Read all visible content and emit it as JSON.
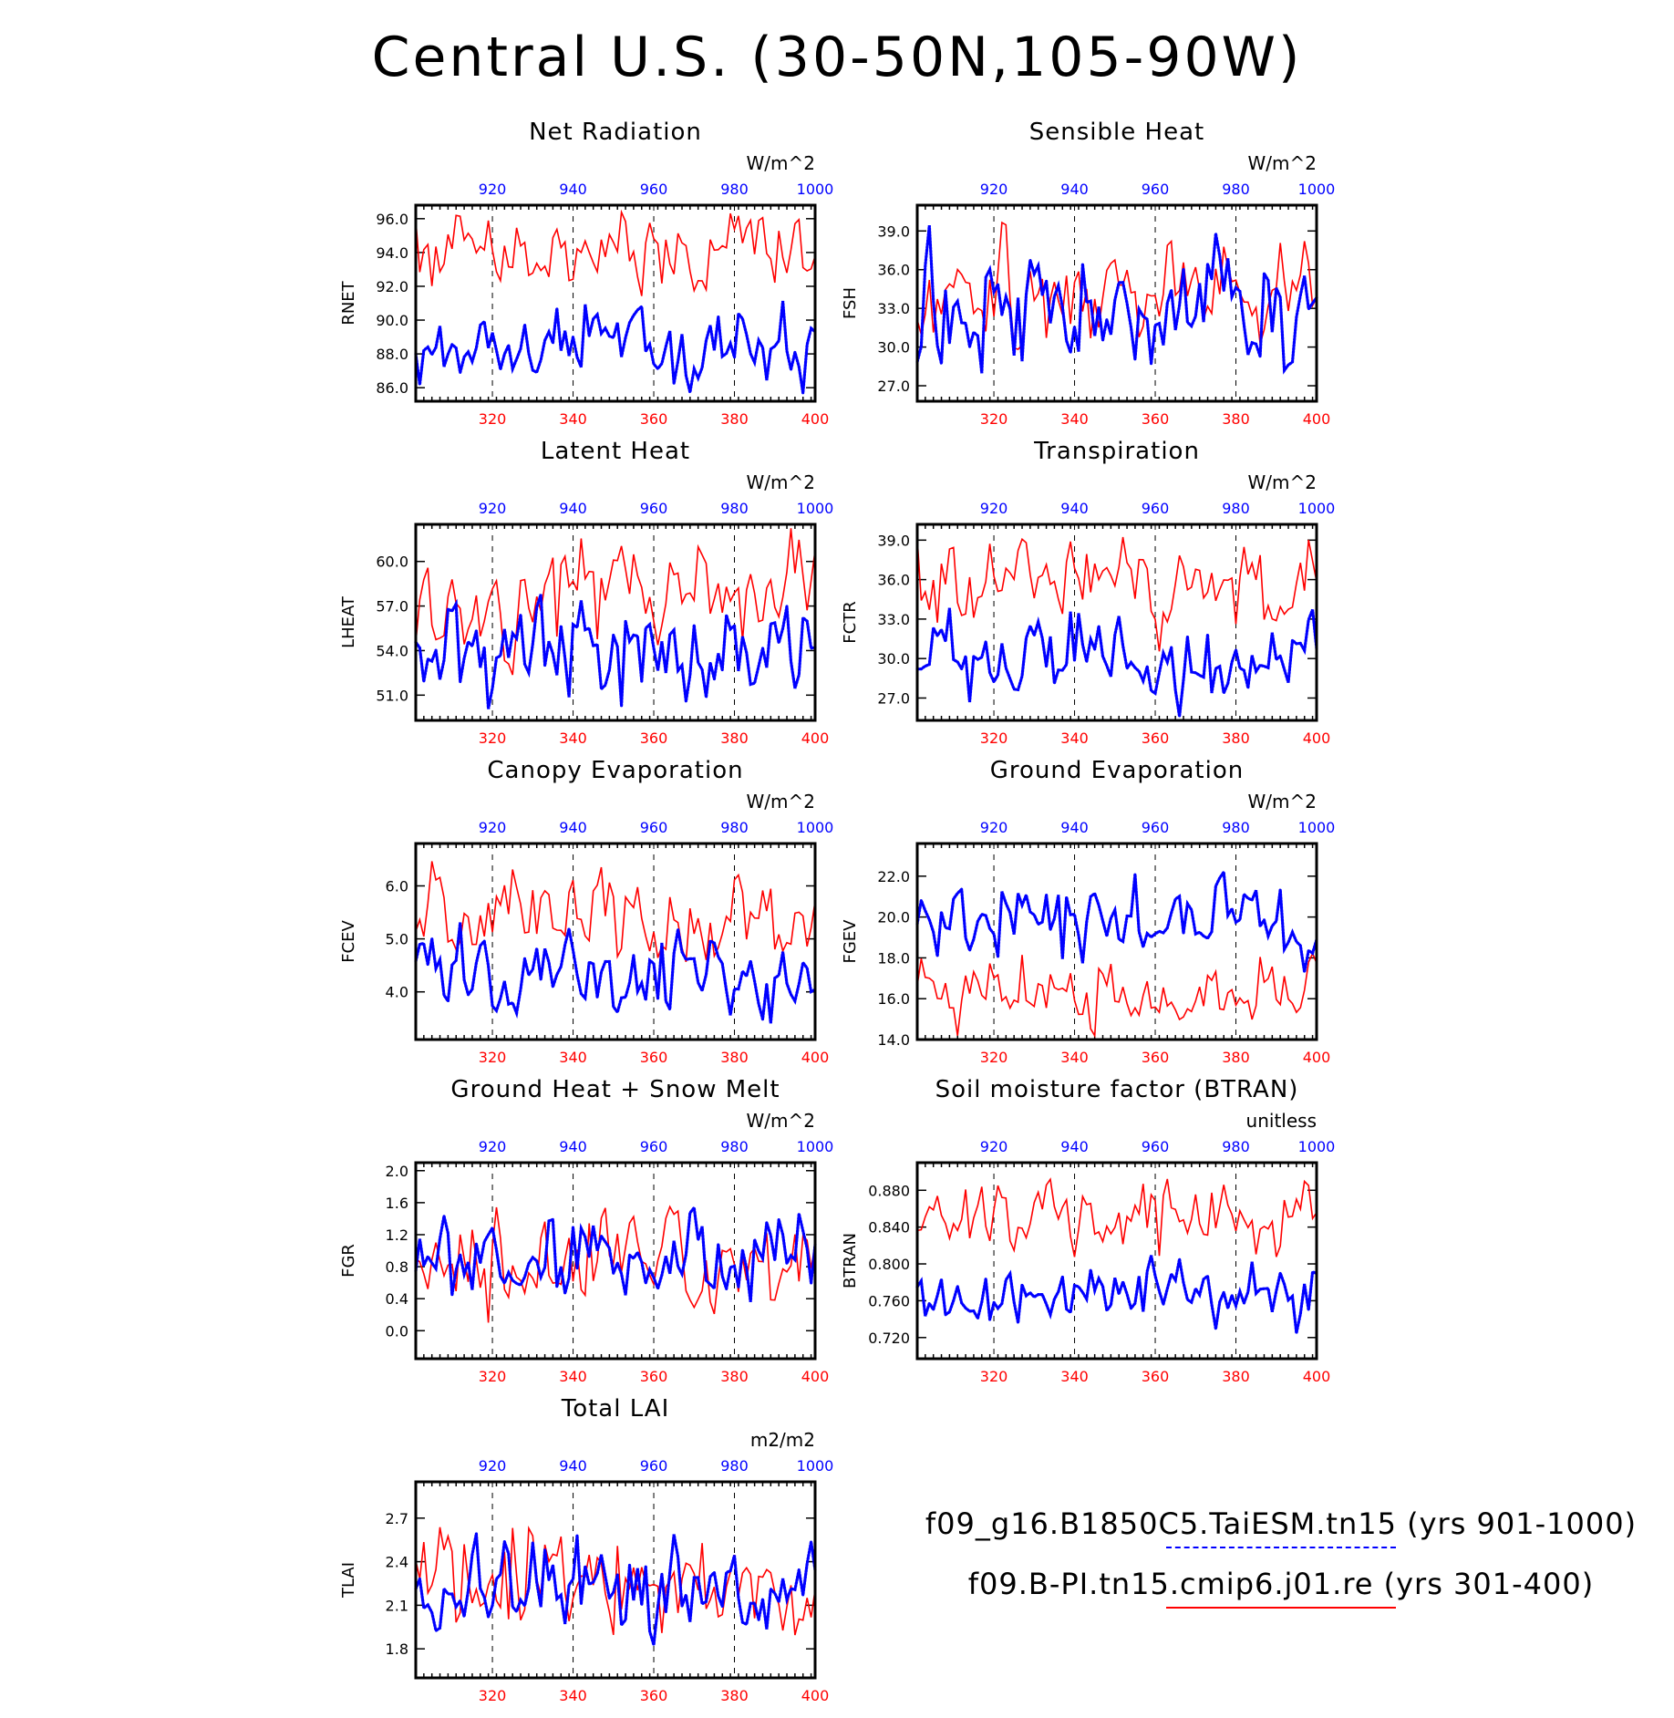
{
  "page_title": "Central U.S. (30-50N,105-90W)",
  "colors": {
    "red": "#ff0000",
    "blue": "#0000ff",
    "axis": "#000000"
  },
  "axes": {
    "bottom_ticks": [
      "320",
      "340",
      "360",
      "380",
      "400"
    ],
    "top_ticks": [
      "920",
      "940",
      "960",
      "980",
      "1000"
    ],
    "bottom_range": [
      301,
      400
    ],
    "top_range": [
      901,
      1000
    ],
    "dashed_gridlines_at": [
      320,
      340,
      360,
      380
    ]
  },
  "legend": {
    "blue_label": "f09_g16.B1850C5.TaiESM.tn15 (yrs 901-1000)",
    "red_label": "f09.B-PI.tn15.cmip6.j01.re (yrs 301-400)"
  },
  "chart_data": [
    {
      "type": "line",
      "title": "Net Radiation",
      "ylabel": "RNET",
      "units": "W/m^2",
      "yticks": [
        "86.0",
        "88.0",
        "90.0",
        "92.0",
        "94.0",
        "96.0"
      ],
      "ylim": [
        85.2,
        96.8
      ],
      "series": [
        {
          "color": "red",
          "style": "solid",
          "mean": 93.8,
          "amp": 1.5,
          "seed": 11
        },
        {
          "color": "blue",
          "style": "dotted",
          "mean": 88.9,
          "amp": 1.4,
          "seed": 12
        }
      ]
    },
    {
      "type": "line",
      "title": "Sensible Heat",
      "ylabel": "FSH",
      "units": "W/m^2",
      "yticks": [
        "27.0",
        "30.0",
        "33.0",
        "36.0",
        "39.0"
      ],
      "ylim": [
        25.8,
        41.0
      ],
      "series": [
        {
          "color": "red",
          "style": "solid",
          "mean": 34.5,
          "amp": 2.6,
          "seed": 21
        },
        {
          "color": "blue",
          "style": "dotted",
          "mean": 33.3,
          "amp": 3.2,
          "seed": 22
        }
      ]
    },
    {
      "type": "line",
      "title": "Latent Heat",
      "ylabel": "LHEAT",
      "units": "W/m^2",
      "yticks": [
        "51.0",
        "54.0",
        "57.0",
        "60.0"
      ],
      "ylim": [
        49.3,
        62.5
      ],
      "series": [
        {
          "color": "red",
          "style": "solid",
          "mean": 57.6,
          "amp": 2.2,
          "seed": 31
        },
        {
          "color": "blue",
          "style": "dotted",
          "mean": 54.6,
          "amp": 2.4,
          "seed": 32
        }
      ]
    },
    {
      "type": "line",
      "title": "Transpiration",
      "ylabel": "FCTR",
      "units": "W/m^2",
      "yticks": [
        "27.0",
        "30.0",
        "33.0",
        "36.0",
        "39.0"
      ],
      "ylim": [
        25.3,
        40.2
      ],
      "series": [
        {
          "color": "red",
          "style": "solid",
          "mean": 36.0,
          "amp": 2.0,
          "seed": 41
        },
        {
          "color": "blue",
          "style": "dotted",
          "mean": 30.2,
          "amp": 2.0,
          "seed": 42
        }
      ]
    },
    {
      "type": "line",
      "title": "Canopy Evaporation",
      "ylabel": "FCEV",
      "units": "W/m^2",
      "yticks": [
        "4.0",
        "5.0",
        "6.0"
      ],
      "ylim": [
        3.1,
        6.8
      ],
      "series": [
        {
          "color": "red",
          "style": "solid",
          "mean": 5.4,
          "amp": 0.5,
          "seed": 51
        },
        {
          "color": "blue",
          "style": "dotted",
          "mean": 4.3,
          "amp": 0.45,
          "seed": 52
        }
      ]
    },
    {
      "type": "line",
      "title": "Ground Evaporation",
      "ylabel": "FGEV",
      "units": "W/m^2",
      "yticks": [
        "14.0",
        "16.0",
        "18.0",
        "20.0",
        "22.0"
      ],
      "ylim": [
        14.0,
        23.6
      ],
      "series": [
        {
          "color": "red",
          "style": "solid",
          "mean": 16.3,
          "amp": 1.0,
          "seed": 61
        },
        {
          "color": "blue",
          "style": "dotted",
          "mean": 19.8,
          "amp": 1.1,
          "seed": 62
        }
      ]
    },
    {
      "type": "line",
      "title": "Ground Heat + Snow Melt",
      "ylabel": "FGR",
      "units": "W/m^2",
      "yticks": [
        "0.0",
        "0.4",
        "0.8",
        "1.2",
        "1.6",
        "2.0"
      ],
      "ylim": [
        -0.35,
        2.1
      ],
      "series": [
        {
          "color": "red",
          "style": "solid",
          "mean": 0.95,
          "amp": 0.35,
          "seed": 71
        },
        {
          "color": "blue",
          "style": "dotted",
          "mean": 0.95,
          "amp": 0.33,
          "seed": 72
        }
      ]
    },
    {
      "type": "line",
      "title": "Soil moisture factor (BTRAN)",
      "ylabel": "BTRAN",
      "units": "unitless",
      "yticks": [
        "0.720",
        "0.760",
        "0.800",
        "0.840",
        "0.880"
      ],
      "ylim": [
        0.697,
        0.91
      ],
      "series": [
        {
          "color": "red",
          "style": "solid",
          "mean": 0.85,
          "amp": 0.022,
          "seed": 81
        },
        {
          "color": "blue",
          "style": "dotted",
          "mean": 0.765,
          "amp": 0.02,
          "seed": 82
        }
      ]
    },
    {
      "type": "line",
      "title": "Total LAI",
      "ylabel": "TLAI",
      "units": "m2/m2",
      "yticks": [
        "1.8",
        "2.1",
        "2.4",
        "2.7"
      ],
      "ylim": [
        1.6,
        2.95
      ],
      "series": [
        {
          "color": "red",
          "style": "solid",
          "mean": 2.3,
          "amp": 0.22,
          "seed": 91
        },
        {
          "color": "blue",
          "style": "dotted",
          "mean": 2.15,
          "amp": 0.22,
          "seed": 92
        }
      ]
    }
  ]
}
